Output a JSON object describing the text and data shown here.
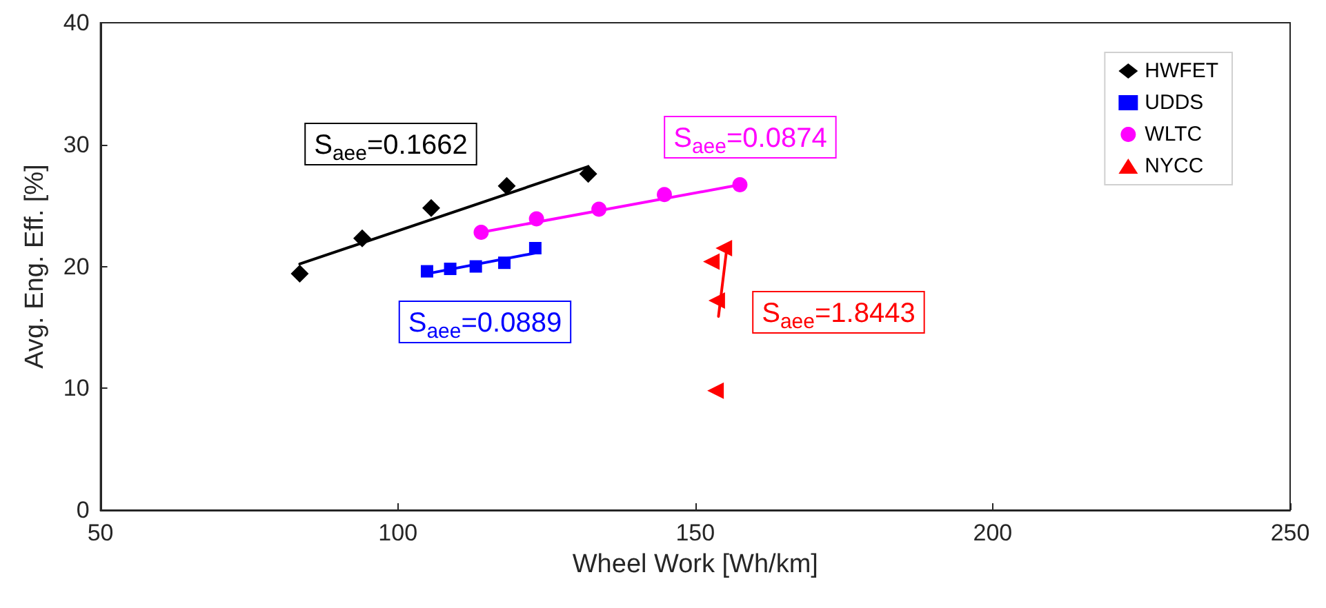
{
  "chart_data": {
    "type": "scatter",
    "xlabel": "Wheel Work [Wh/km]",
    "ylabel": "Avg. Eng. Eff. [%]",
    "xlim": [
      50,
      250
    ],
    "xticks": [
      50,
      100,
      150,
      200,
      250
    ],
    "ylim": [
      0,
      40
    ],
    "yticks": [
      0,
      10,
      20,
      30,
      40
    ],
    "grid": false,
    "legend": "top right",
    "series": [
      {
        "name": "HWFET",
        "color": "#000000",
        "marker": "diamond",
        "x": [
          83.5,
          94,
          105.6,
          118.3,
          132
        ],
        "values": [
          19.4,
          22.3,
          24.8,
          26.6,
          27.6
        ]
      },
      {
        "name": "UDDS",
        "color": "#0000ff",
        "marker": "square",
        "x": [
          104.9,
          108.8,
          113.1,
          117.9,
          123.1
        ],
        "values": [
          19.6,
          19.8,
          20.0,
          20.3,
          21.5
        ]
      },
      {
        "name": "WLTC",
        "color": "#ff00ff",
        "marker": "circle",
        "x": [
          114,
          123.3,
          133.8,
          144.8,
          157.5
        ],
        "values": [
          22.8,
          23.9,
          24.7,
          25.9,
          26.7
        ]
      },
      {
        "name": "NYCC",
        "color": "#ff0000",
        "marker": "triangle",
        "x": [
          154.8,
          152.7,
          153.6,
          153.4
        ],
        "values": [
          21.5,
          20.4,
          17.2,
          9.8
        ]
      },
      {
        "type": "line",
        "color": "#000000",
        "marker": "none",
        "x": [
          83.5,
          132
        ],
        "values": [
          20.2,
          28.2
        ]
      },
      {
        "type": "line",
        "color": "#0000ff",
        "marker": "none",
        "x": [
          104.9,
          123.1
        ],
        "values": [
          19.4,
          21.1
        ]
      },
      {
        "type": "line",
        "color": "#ff00ff",
        "marker": "none",
        "x": [
          114,
          157.5
        ],
        "values": [
          22.8,
          26.7
        ]
      },
      {
        "type": "line",
        "color": "#ff0000",
        "marker": "none",
        "x": [
          153.9,
          155.2
        ],
        "values": [
          15.9,
          21.1
        ]
      }
    ],
    "annotations": [
      "S$_{aee}$=0.1662",
      "S$_{aee}$=0.0889",
      "S$_{aee}$=0.0874",
      "S$_{aee}$=1.8443"
    ]
  }
}
